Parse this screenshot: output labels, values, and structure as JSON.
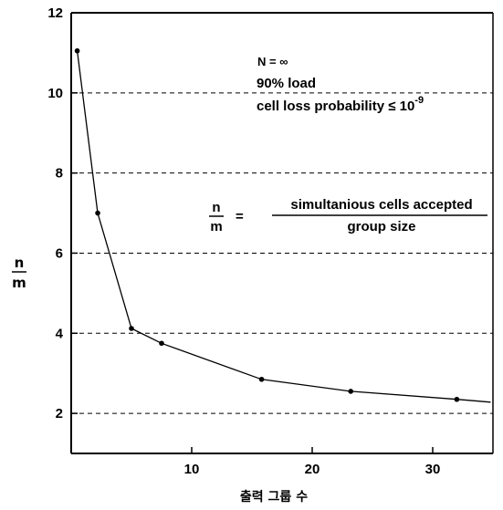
{
  "chart_data": {
    "type": "line",
    "title": "",
    "xlabel": "출력 그룹 수",
    "ylabel": {
      "numerator": "n",
      "denominator": "m"
    },
    "xlim": [
      0,
      35
    ],
    "ylim": [
      1,
      12
    ],
    "x_ticks": [
      10,
      20,
      30
    ],
    "y_ticks": [
      2,
      4,
      6,
      8,
      10,
      12
    ],
    "grid": "horizontal dashed at y = 2, 4, 6, 8, 10",
    "legend": "none",
    "series": [
      {
        "x": [
          0.5,
          2.2,
          5.0,
          7.5,
          15.8,
          23.2,
          32.0,
          34.8
        ],
        "y": [
          11.05,
          7.0,
          4.12,
          3.75,
          2.85,
          2.55,
          2.35,
          2.28
        ],
        "markers": [
          true,
          true,
          true,
          true,
          true,
          true,
          true,
          false
        ]
      }
    ],
    "annotations": {
      "line1": "N = ∞",
      "line2": "90% load",
      "line3_prefix": "cell loss probability ≤ 10",
      "line3_exponent": "-9",
      "ratio_numerator": "n",
      "ratio_denominator": "m",
      "ratio_equals": "=",
      "fraction_numerator": "simultanious cells accepted",
      "fraction_denominator": "group size"
    },
    "colors": {
      "line": "#000000",
      "grid": "#000000"
    }
  }
}
